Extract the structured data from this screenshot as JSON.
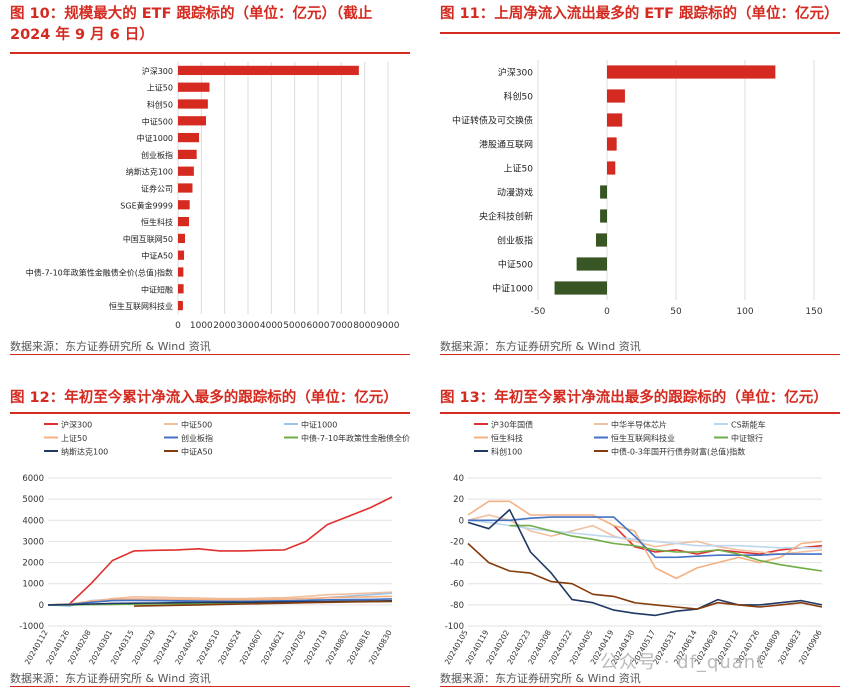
{
  "source_text": "数据来源：东方证券研究所 & Wind 资讯",
  "watermark": "公众号 · df_quant",
  "chart_data": [
    {
      "id": "fig10",
      "type": "bar",
      "orientation": "horizontal",
      "title": "图 10：规模最大的 ETF 跟踪标的（单位：亿元）（截止 2024 年 9 月 6 日）",
      "categories": [
        "沪深300",
        "上证50",
        "科创50",
        "中证500",
        "中证1000",
        "创业板指",
        "纳斯达克100",
        "证券公司",
        "SGE黄金9999",
        "恒生科技",
        "中国互联网50",
        "中证A50",
        "中债-7-10年政策性金融债全价(总值)指数",
        "中证短融",
        "恒生互联网科技业"
      ],
      "values": [
        7750,
        1350,
        1280,
        1200,
        900,
        800,
        680,
        620,
        500,
        470,
        300,
        260,
        230,
        240,
        210
      ],
      "xlim": [
        0,
        9000
      ],
      "xticks": [
        0,
        1000,
        2000,
        3000,
        4000,
        5000,
        6000,
        7000,
        8000,
        9000
      ],
      "color": "#d42a20",
      "grid": true
    },
    {
      "id": "fig11",
      "type": "bar",
      "orientation": "horizontal",
      "title": "图 11：上周净流入流出最多的 ETF 跟踪标的（单位：亿元）",
      "categories": [
        "沪深300",
        "科创50",
        "中证转债及可交换债",
        "港股通互联网",
        "上证50",
        "动漫游戏",
        "央企科技创新",
        "创业板指",
        "中证500",
        "中证1000"
      ],
      "values": [
        122,
        13,
        11,
        7,
        6,
        -5,
        -5,
        -8,
        -22,
        -38
      ],
      "xlim": [
        -50,
        150
      ],
      "xticks": [
        -50,
        0,
        50,
        100,
        150
      ],
      "color_pos": "#d42a20",
      "color_neg": "#375623",
      "grid": true
    },
    {
      "id": "fig12",
      "type": "line",
      "title": "图 12：年初至今累计净流入最多的跟踪标的（单位：亿元）",
      "x": [
        "20240112",
        "20240126",
        "20240208",
        "20240301",
        "20240315",
        "20240329",
        "20240412",
        "20240426",
        "20240510",
        "20240524",
        "20240607",
        "20240621",
        "20240705",
        "20240719",
        "20240802",
        "20240816",
        "20240830"
      ],
      "ylim": [
        -1000,
        6000
      ],
      "yticks": [
        -1000,
        0,
        1000,
        2000,
        3000,
        4000,
        5000,
        6000
      ],
      "series": [
        {
          "name": "沪深300",
          "color": "#e03030",
          "values": [
            0,
            40,
            1000,
            2100,
            2550,
            2580,
            2600,
            2650,
            2550,
            2550,
            2580,
            2600,
            3000,
            3800,
            4200,
            4600,
            5100
          ]
        },
        {
          "name": "中证500",
          "color": "#f0c0a0",
          "values": [
            0,
            20,
            150,
            300,
            380,
            360,
            340,
            320,
            300,
            300,
            320,
            340,
            400,
            480,
            520,
            560,
            600
          ]
        },
        {
          "name": "中证1000",
          "color": "#9dc3e6",
          "values": [
            0,
            -60,
            200,
            250,
            220,
            200,
            180,
            160,
            140,
            140,
            150,
            170,
            220,
            350,
            420,
            480,
            550
          ]
        },
        {
          "name": "上证50",
          "color": "#f4b183",
          "values": [
            0,
            30,
            180,
            260,
            280,
            270,
            260,
            260,
            250,
            250,
            260,
            270,
            300,
            340,
            360,
            380,
            400
          ]
        },
        {
          "name": "创业板指",
          "color": "#4472c4",
          "values": [
            0,
            10,
            120,
            200,
            210,
            200,
            190,
            180,
            170,
            170,
            180,
            190,
            210,
            240,
            250,
            260,
            280
          ]
        },
        {
          "name": "中债-7-10年政策性金融债全价(总值)指数",
          "color": "#70ad47",
          "values": [
            0,
            0,
            10,
            20,
            30,
            40,
            50,
            60,
            70,
            80,
            90,
            100,
            120,
            140,
            150,
            160,
            170
          ]
        },
        {
          "name": "纳斯达克100",
          "color": "#1f3864",
          "values": [
            0,
            10,
            40,
            70,
            80,
            90,
            100,
            110,
            120,
            120,
            130,
            140,
            150,
            160,
            170,
            180,
            190
          ]
        },
        {
          "name": "中证A50",
          "color": "#843c0c",
          "values": [
            null,
            null,
            null,
            null,
            -60,
            -40,
            -20,
            0,
            20,
            40,
            60,
            80,
            100,
            120,
            140,
            150,
            160
          ]
        }
      ]
    },
    {
      "id": "fig13",
      "type": "line",
      "title": "图 13：年初至今累计净流出最多的跟踪标的（单位：亿元）",
      "x": [
        "20240105",
        "20240119",
        "20240202",
        "20240223",
        "20240308",
        "20240322",
        "20240405",
        "20240419",
        "20240430",
        "20240517",
        "20240531",
        "20240614",
        "20240628",
        "20240712",
        "20240726",
        "20240809",
        "20240823",
        "20240906"
      ],
      "ylim": [
        -100,
        40
      ],
      "yticks": [
        -100,
        -80,
        -60,
        -40,
        -20,
        0,
        20,
        40
      ],
      "series": [
        {
          "name": "沪30年国债",
          "color": "#e03030",
          "values": [
            null,
            null,
            null,
            null,
            null,
            null,
            null,
            -5,
            -25,
            -30,
            -28,
            -32,
            -28,
            -30,
            -32,
            -28,
            -26,
            -24
          ]
        },
        {
          "name": "中华半导体芯片",
          "color": "#f0c0a0",
          "values": [
            0,
            5,
            0,
            -10,
            -15,
            -10,
            -5,
            -15,
            -20,
            -25,
            -22,
            -20,
            -25,
            -28,
            -30,
            -32,
            -30,
            -28
          ]
        },
        {
          "name": "CS新能车",
          "color": "#bdd7ee",
          "values": [
            0,
            -2,
            -5,
            -8,
            -10,
            -12,
            -14,
            -16,
            -18,
            -20,
            -22,
            -24,
            -24,
            -24,
            -25,
            -26,
            -26,
            -26
          ]
        },
        {
          "name": "恒生科技",
          "color": "#f4b183",
          "values": [
            5,
            18,
            18,
            5,
            5,
            5,
            5,
            -5,
            -10,
            -45,
            -55,
            -45,
            -40,
            -35,
            -40,
            -35,
            -22,
            -20
          ]
        },
        {
          "name": "恒生互联网科技业",
          "color": "#4472c4",
          "values": [
            0,
            0,
            0,
            2,
            3,
            3,
            3,
            3,
            -15,
            -35,
            -35,
            -34,
            -33,
            -33,
            -33,
            -32,
            -32,
            -32
          ]
        },
        {
          "name": "中证银行",
          "color": "#70ad47",
          "values": [
            null,
            null,
            -5,
            -5,
            -10,
            -15,
            -18,
            -22,
            -24,
            -28,
            -30,
            -30,
            -28,
            -32,
            -38,
            -42,
            -45,
            -48
          ]
        },
        {
          "name": "科创100",
          "color": "#1f3864",
          "values": [
            -2,
            -8,
            10,
            -30,
            -50,
            -75,
            -78,
            -85,
            -88,
            -90,
            -86,
            -84,
            -75,
            -80,
            -80,
            -78,
            -76,
            -80
          ]
        },
        {
          "name": "中债-0-3年国开行债券财富(总值)指数",
          "color": "#843c0c",
          "values": [
            -22,
            -40,
            -48,
            -50,
            -58,
            -60,
            -70,
            -72,
            -78,
            -80,
            -82,
            -84,
            -78,
            -80,
            -82,
            -80,
            -78,
            -82
          ]
        }
      ]
    }
  ]
}
